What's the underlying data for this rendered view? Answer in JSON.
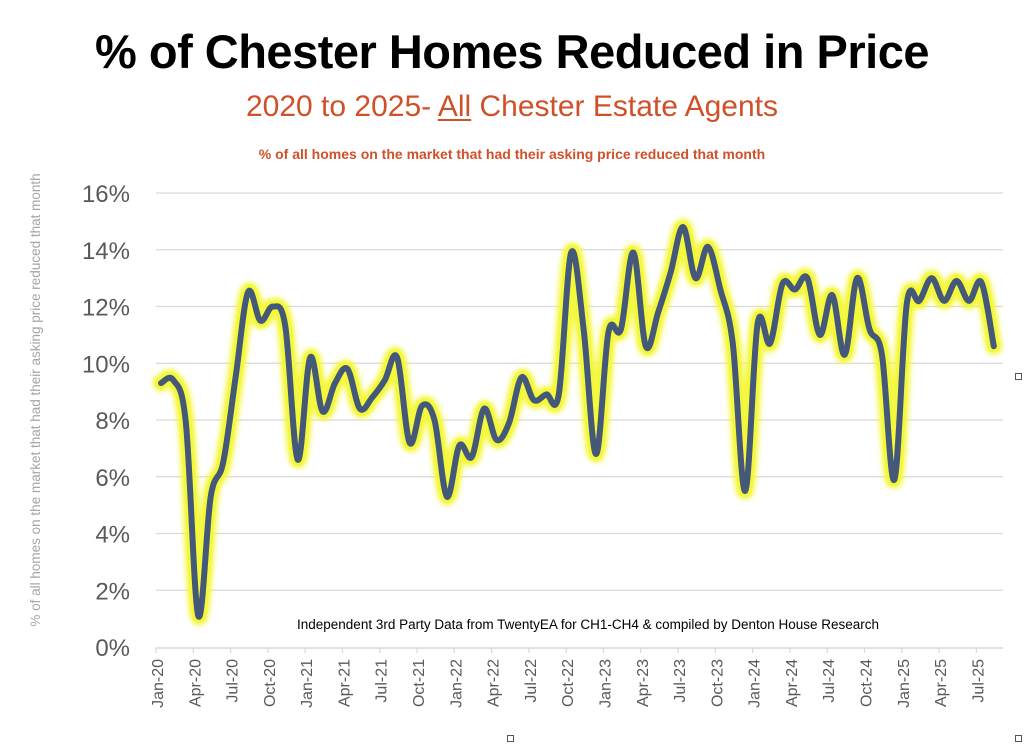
{
  "header": {
    "title": "% of Chester Homes Reduced in Price",
    "subtitle_prefix": "2020 to 2025- ",
    "subtitle_emph": "All",
    "subtitle_suffix": " Chester Estate Agents",
    "description": "% of all homes on the market that had their asking price reduced that month"
  },
  "colors": {
    "title": "#000000",
    "subtitle": "#D0502A",
    "line": "#44587A",
    "glow": "#F4F83A",
    "grid": "#D9D9D9",
    "tick_text": "#595959",
    "ylabel_text": "#A6A6A6"
  },
  "chart_data": {
    "type": "line",
    "title": "% of Chester Homes Reduced in Price",
    "subtitle": "2020 to 2025- All Chester Estate Agents",
    "xlabel": "",
    "ylabel": "% of all homes on the market that had their asking price reduced that month",
    "ylim": [
      0,
      16
    ],
    "y_ticks": [
      "0%",
      "2%",
      "4%",
      "6%",
      "8%",
      "10%",
      "12%",
      "14%",
      "16%"
    ],
    "y_tick_values": [
      0,
      2,
      4,
      6,
      8,
      10,
      12,
      14,
      16
    ],
    "x_tick_labels": [
      "Jan-20",
      "Apr-20",
      "Jul-20",
      "Oct-20",
      "Jan-21",
      "Apr-21",
      "Jul-21",
      "Oct-21",
      "Jan-22",
      "Apr-22",
      "Jul-22",
      "Oct-22",
      "Jan-23",
      "Apr-23",
      "Jul-23",
      "Oct-23",
      "Jan-24",
      "Apr-24",
      "Jul-24",
      "Oct-24",
      "Jan-25",
      "Apr-25",
      "Jul-25"
    ],
    "grid": true,
    "legend": "none",
    "annotation": "Independent 3rd Party Data from TwentyEA for CH1-CH4 & compiled by Denton House Research",
    "x": [
      "Jan-20",
      "Feb-20",
      "Mar-20",
      "Apr-20",
      "May-20",
      "Jun-20",
      "Jul-20",
      "Aug-20",
      "Sep-20",
      "Oct-20",
      "Nov-20",
      "Dec-20",
      "Jan-21",
      "Feb-21",
      "Mar-21",
      "Apr-21",
      "May-21",
      "Jun-21",
      "Jul-21",
      "Aug-21",
      "Sep-21",
      "Oct-21",
      "Nov-21",
      "Dec-21",
      "Jan-22",
      "Feb-22",
      "Mar-22",
      "Apr-22",
      "May-22",
      "Jun-22",
      "Jul-22",
      "Aug-22",
      "Sep-22",
      "Oct-22",
      "Nov-22",
      "Dec-22",
      "Jan-23",
      "Feb-23",
      "Mar-23",
      "Apr-23",
      "May-23",
      "Jun-23",
      "Jul-23",
      "Aug-23",
      "Sep-23",
      "Oct-23",
      "Nov-23",
      "Dec-23",
      "Jan-24",
      "Feb-24",
      "Mar-24",
      "Apr-24",
      "May-24",
      "Jun-24",
      "Jul-24",
      "Aug-24",
      "Sep-24",
      "Oct-24",
      "Nov-24",
      "Dec-24",
      "Jan-25",
      "Feb-25",
      "Mar-25",
      "Apr-25",
      "May-25",
      "Jun-25",
      "Jul-25",
      "Aug-25"
    ],
    "series": [
      {
        "name": "% reduced",
        "values": [
          9.3,
          9.4,
          7.9,
          1.1,
          5.3,
          6.5,
          9.5,
          12.5,
          11.5,
          12.0,
          11.3,
          6.6,
          10.2,
          8.3,
          9.3,
          9.8,
          8.4,
          8.8,
          9.4,
          10.2,
          7.2,
          8.5,
          8.0,
          5.3,
          7.1,
          6.7,
          8.4,
          7.3,
          7.9,
          9.5,
          8.7,
          8.9,
          8.9,
          13.9,
          11.2,
          6.8,
          11.1,
          11.2,
          13.9,
          10.6,
          11.8,
          13.2,
          14.8,
          13.0,
          14.1,
          12.6,
          10.7,
          5.5,
          11.4,
          10.7,
          12.8,
          12.6,
          13.0,
          11.0,
          12.4,
          10.3,
          13.0,
          11.2,
          10.3,
          5.9,
          12.1,
          12.2,
          13.0,
          12.2,
          12.9,
          12.2,
          12.85,
          10.6
        ]
      }
    ]
  }
}
